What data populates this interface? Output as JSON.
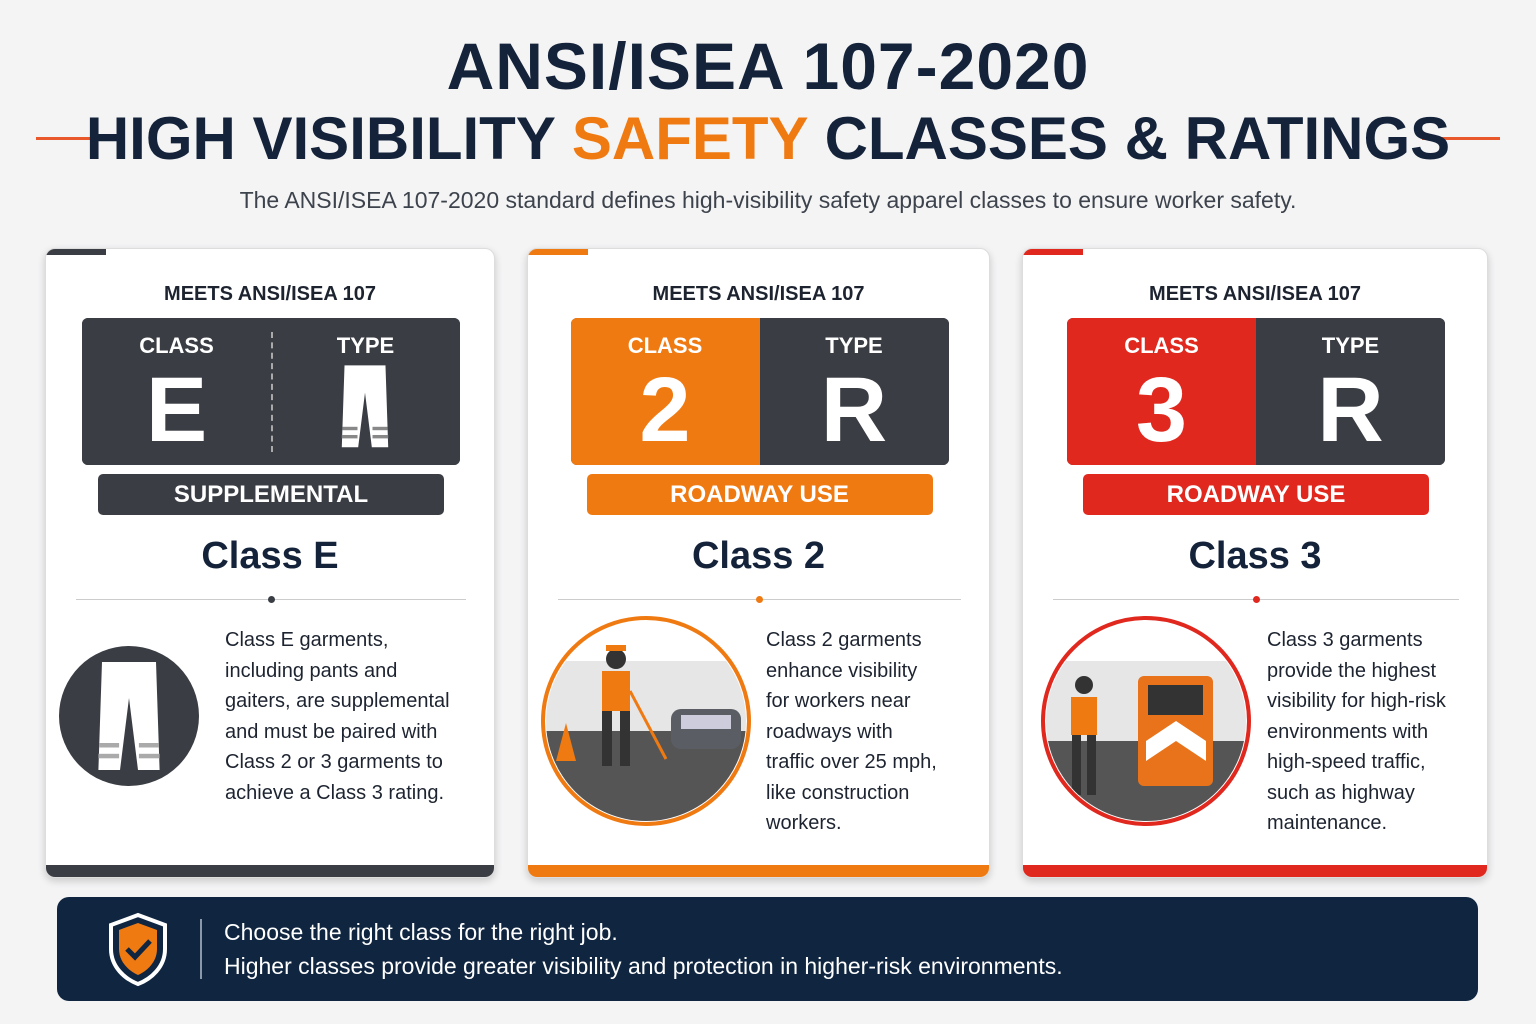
{
  "header": {
    "title_line1": "ANSI/ISEA 107-2020",
    "title_line2": [
      "HIGH VISIBILITY",
      "SAFETY",
      "CLASSES & RATINGS"
    ],
    "subtitle": "The ANSI/ISEA 107-2020 standard defines high-visibility safety apparel classes to ensure worker safety."
  },
  "cards": [
    {
      "label": "MEETS ANSI/ISEA 107",
      "class_label": "CLASS",
      "class_value": "E",
      "type_label": "TYPE",
      "band": "SUPPLEMENTAL",
      "name": "Class E",
      "description": [
        "Class E garments,",
        "including pants and",
        "gaiters, are supplemental",
        "and must be paired with",
        "Class 2 or 3 garments to",
        "achieve a Class 3 rating."
      ]
    },
    {
      "label": "MEETS ANSI/ISEA 107",
      "class_label": "CLASS",
      "class_value": "2",
      "type_label": "TYPE",
      "type_value": "R",
      "band": "ROADWAY USE",
      "name": "Class 2",
      "description": [
        "Class 2 garments",
        "enhance visibility",
        "for workers near",
        "roadways with",
        "traffic over 25 mph,",
        "like construction",
        "workers."
      ]
    },
    {
      "label": "MEETS ANSI/ISEA 107",
      "class_label": "CLASS",
      "class_value": "3",
      "type_label": "TYPE",
      "type_value": "R",
      "band": "ROADWAY USE",
      "name": "Class 3",
      "description": [
        "Class 3 garments",
        "provide the highest",
        "visibility for high-risk",
        "environments with",
        "high-speed traffic,",
        "such as highway",
        "maintenance."
      ]
    }
  ],
  "footer": {
    "lines": [
      "Choose the right class for the right job.",
      "Higher classes provide greater visibility and protection in higher-risk environments."
    ]
  }
}
